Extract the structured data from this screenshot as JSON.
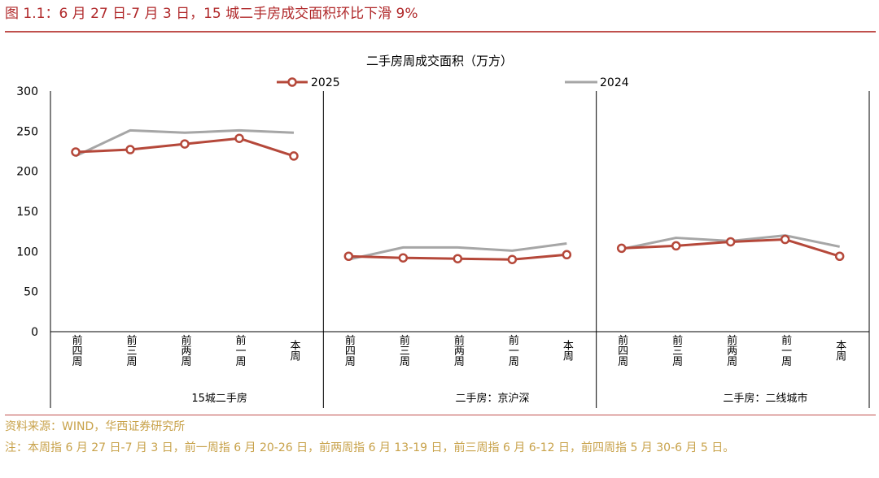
{
  "figure_title": "图 1.1：6 月 27 日-7 月 3 日，15 城二手房成交面积环比下滑 9%",
  "source": "资料来源：WIND，华西证券研究所",
  "note": "注：本周指 6 月 27 日-7 月 3 日，前一周指 6 月 20-26 日，前两周指 6 月 13-19 日，前三周指 6 月 6-12 日，前四周指 5 月 30-6 月 5 日。",
  "colors": {
    "s2025": "#b5483a",
    "s2024": "#a6a6a6",
    "title": "#b0282a",
    "rule": "#c0504d",
    "source": "#c8a24a"
  },
  "chart_data": {
    "type": "line",
    "title": "二手房周成交面积（万方）",
    "ylim": [
      0,
      300
    ],
    "yticks": [
      "0",
      "50",
      "100",
      "150",
      "200",
      "250",
      "300"
    ],
    "categories": [
      "前四周",
      "前三周",
      "前两周",
      "前一周",
      "本周"
    ],
    "groups": [
      "15城二手房",
      "二手房：京沪深",
      "二手房：二线城市"
    ],
    "legend_position": "top",
    "grid": false,
    "series": [
      {
        "name": "2025",
        "marker": "circle",
        "values": [
          [
            224,
            227,
            234,
            241,
            219
          ],
          [
            94,
            92,
            91,
            90,
            96
          ],
          [
            104,
            107,
            112,
            115,
            94
          ]
        ]
      },
      {
        "name": "2024",
        "marker": "none",
        "values": [
          [
            219,
            251,
            248,
            251,
            248
          ],
          [
            90,
            105,
            105,
            101,
            110
          ],
          [
            103,
            117,
            113,
            120,
            106
          ]
        ]
      }
    ]
  }
}
